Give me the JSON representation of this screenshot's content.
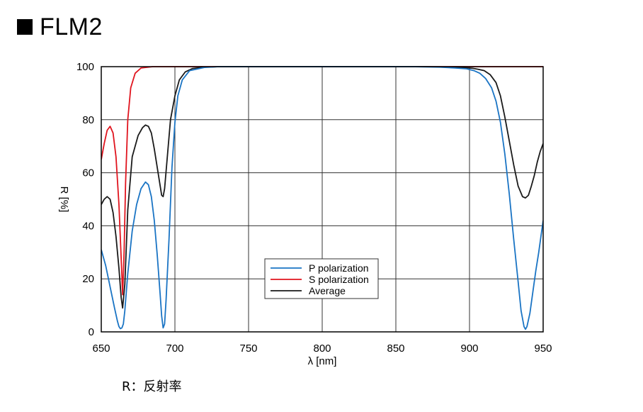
{
  "page": {
    "title": "FLM2",
    "note": "R：反射率"
  },
  "colors": {
    "p": "#1a74c4",
    "s": "#e0141e",
    "avg": "#1a1a1a",
    "grid": "#333333"
  },
  "chart_data": {
    "type": "line",
    "title": "FLM2",
    "xlabel": "λ [nm]",
    "ylabel": "R [%]",
    "xlim": [
      650,
      950
    ],
    "ylim": [
      0,
      100
    ],
    "xticks": [
      650,
      700,
      750,
      800,
      850,
      900,
      950
    ],
    "yticks": [
      0,
      20,
      40,
      60,
      80,
      100
    ],
    "grid": true,
    "legend_position": "lower-center",
    "series": [
      {
        "name": "P polarization",
        "color": "#1a74c4",
        "points": [
          [
            650,
            31
          ],
          [
            653,
            25
          ],
          [
            656,
            17
          ],
          [
            659,
            9
          ],
          [
            661,
            4
          ],
          [
            662,
            2
          ],
          [
            663,
            1.2
          ],
          [
            664,
            1.5
          ],
          [
            665,
            3
          ],
          [
            666,
            8
          ],
          [
            668,
            22
          ],
          [
            671,
            38
          ],
          [
            674,
            48
          ],
          [
            677,
            54
          ],
          [
            680,
            56.5
          ],
          [
            682,
            55.5
          ],
          [
            684,
            51
          ],
          [
            686,
            42
          ],
          [
            688,
            29
          ],
          [
            690,
            14
          ],
          [
            691,
            6
          ],
          [
            692,
            1.5
          ],
          [
            693,
            3
          ],
          [
            694,
            12
          ],
          [
            696,
            35
          ],
          [
            698,
            62
          ],
          [
            700,
            79
          ],
          [
            702,
            89
          ],
          [
            705,
            95
          ],
          [
            710,
            98.5
          ],
          [
            720,
            99.7
          ],
          [
            730,
            100
          ],
          [
            800,
            100
          ],
          [
            860,
            100
          ],
          [
            880,
            99.8
          ],
          [
            890,
            99.5
          ],
          [
            898,
            99.2
          ],
          [
            903,
            98.5
          ],
          [
            907,
            97.5
          ],
          [
            911,
            95.5
          ],
          [
            915,
            92
          ],
          [
            918,
            87
          ],
          [
            921,
            79
          ],
          [
            924,
            67
          ],
          [
            927,
            52
          ],
          [
            930,
            35
          ],
          [
            933,
            19
          ],
          [
            935,
            8
          ],
          [
            937,
            2
          ],
          [
            938,
            1
          ],
          [
            939,
            2
          ],
          [
            941,
            7
          ],
          [
            943,
            15
          ],
          [
            945,
            23
          ],
          [
            947,
            30
          ],
          [
            950,
            42
          ]
        ]
      },
      {
        "name": "S polarization",
        "color": "#e0141e",
        "points": [
          [
            650,
            65
          ],
          [
            652,
            71
          ],
          [
            654,
            76
          ],
          [
            656,
            77.5
          ],
          [
            658,
            75
          ],
          [
            660,
            66
          ],
          [
            662,
            48
          ],
          [
            663.5,
            28
          ],
          [
            664.5,
            14
          ],
          [
            665.5,
            30
          ],
          [
            666.5,
            56
          ],
          [
            668,
            80
          ],
          [
            670,
            92
          ],
          [
            673,
            97.5
          ],
          [
            677,
            99.5
          ],
          [
            685,
            100
          ],
          [
            750,
            100
          ],
          [
            850,
            100
          ],
          [
            950,
            100
          ]
        ]
      },
      {
        "name": "Average",
        "color": "#1a1a1a",
        "points": [
          [
            650,
            48
          ],
          [
            652,
            50
          ],
          [
            654,
            51
          ],
          [
            656,
            50
          ],
          [
            658,
            45
          ],
          [
            660,
            36
          ],
          [
            662,
            24
          ],
          [
            663.5,
            13
          ],
          [
            664.5,
            9
          ],
          [
            666,
            18
          ],
          [
            668,
            46
          ],
          [
            671,
            66
          ],
          [
            675,
            74
          ],
          [
            678,
            77
          ],
          [
            680,
            78
          ],
          [
            682,
            77.5
          ],
          [
            684,
            75
          ],
          [
            686,
            69
          ],
          [
            688,
            62
          ],
          [
            690,
            55
          ],
          [
            691,
            51.5
          ],
          [
            692,
            51
          ],
          [
            693,
            54
          ],
          [
            695,
            67
          ],
          [
            697,
            80
          ],
          [
            700,
            89
          ],
          [
            703,
            95
          ],
          [
            707,
            98
          ],
          [
            712,
            99.3
          ],
          [
            720,
            99.8
          ],
          [
            730,
            100
          ],
          [
            800,
            100
          ],
          [
            870,
            100
          ],
          [
            885,
            99.9
          ],
          [
            895,
            99.7
          ],
          [
            902,
            99.4
          ],
          [
            906,
            99
          ],
          [
            910,
            98.5
          ],
          [
            914,
            97
          ],
          [
            918,
            94
          ],
          [
            921,
            89
          ],
          [
            924,
            81
          ],
          [
            927,
            72
          ],
          [
            930,
            63
          ],
          [
            933,
            55
          ],
          [
            936,
            51
          ],
          [
            938,
            50.5
          ],
          [
            940,
            51.5
          ],
          [
            942,
            55
          ],
          [
            944,
            59
          ],
          [
            946,
            64
          ],
          [
            948,
            68
          ],
          [
            950,
            71
          ]
        ]
      }
    ]
  }
}
